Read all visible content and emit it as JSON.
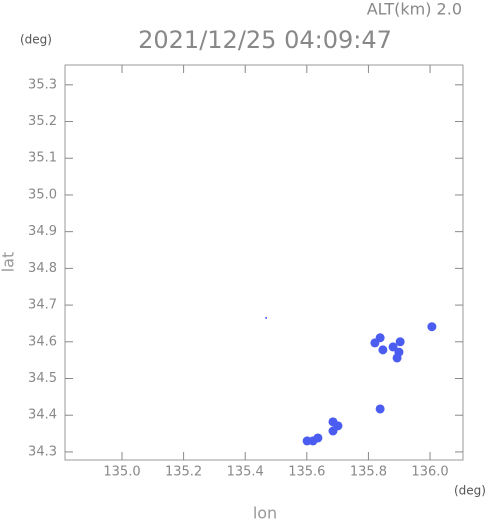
{
  "chart_data": {
    "type": "scatter",
    "title": "2021/12/25 04:09:47",
    "subtitle": "ALT(km) 2.0",
    "y_unit": "(deg)",
    "x_unit": "(deg)",
    "xlabel": "lon",
    "ylabel": "lat",
    "color": "#4b5cf0",
    "x": [
      135.468,
      135.821,
      135.847,
      135.88,
      135.899,
      135.893,
      135.903,
      135.838,
      136.006,
      135.838,
      135.62,
      135.601,
      135.636,
      135.685,
      135.701,
      135.685
    ],
    "y": [
      34.665,
      34.597,
      34.578,
      34.586,
      34.572,
      34.556,
      34.6,
      34.611,
      34.641,
      34.417,
      34.33,
      34.33,
      34.338,
      34.357,
      34.371,
      34.382
    ],
    "xlim": [
      134.815,
      136.107
    ],
    "ylim": [
      34.278,
      35.354
    ],
    "xticks": [
      {
        "value": 135,
        "label": "135.0"
      },
      135.2,
      135.4,
      135.6,
      135.8,
      {
        "value": 136,
        "label": "136.0"
      }
    ],
    "yticks": [
      34.3,
      34.4,
      34.5,
      34.6,
      34.7,
      34.8,
      34.9,
      {
        "value": 35,
        "label": "35.0"
      },
      35.1,
      35.2,
      35.3
    ]
  }
}
